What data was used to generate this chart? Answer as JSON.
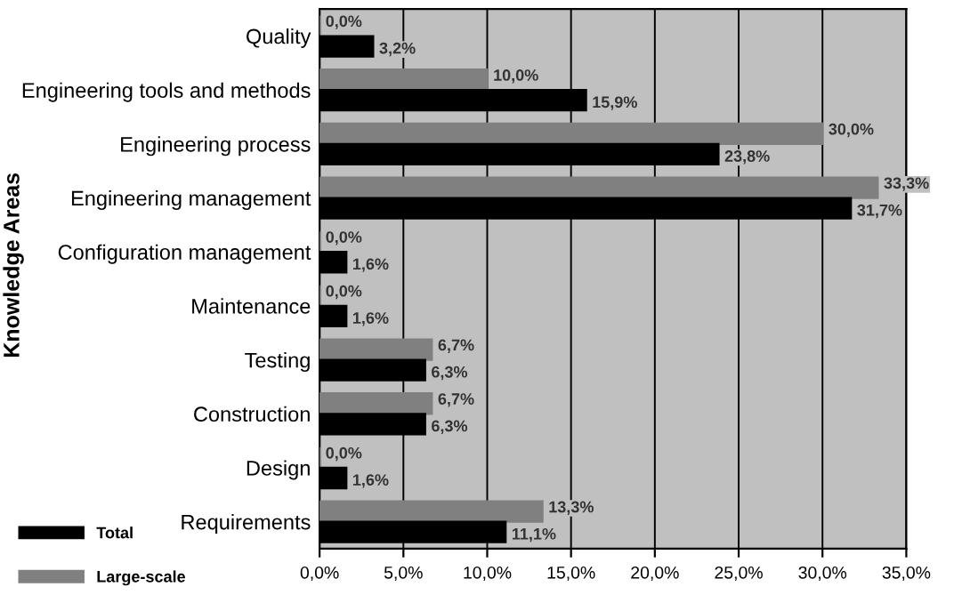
{
  "chart_data": {
    "type": "bar",
    "orientation": "horizontal",
    "ylabel": "Knowledge Areas",
    "categories": [
      "Quality",
      "Engineering tools and methods",
      "Engineering process",
      "Engineering management",
      "Configuration management",
      "Maintenance",
      "Testing",
      "Construction",
      "Design",
      "Requirements"
    ],
    "series": [
      {
        "name": "Large-scale",
        "color": "#808080",
        "values": [
          0.0,
          10.0,
          30.0,
          33.3,
          0.0,
          0.0,
          6.7,
          6.7,
          0.0,
          13.3
        ],
        "value_labels": [
          "0,0%",
          "10,0%",
          "30,0%",
          "33,3%",
          "0,0%",
          "0,0%",
          "6,7%",
          "6,7%",
          "0,0%",
          "13,3%"
        ]
      },
      {
        "name": "Total",
        "color": "#000000",
        "values": [
          3.2,
          15.9,
          23.8,
          31.7,
          1.6,
          1.6,
          6.3,
          6.3,
          1.6,
          11.1
        ],
        "value_labels": [
          "3,2%",
          "15,9%",
          "23,8%",
          "31,7%",
          "1,6%",
          "1,6%",
          "6,3%",
          "6,3%",
          "1,6%",
          "11,1%"
        ]
      }
    ],
    "xlim": [
      0,
      35
    ],
    "xticks": [
      {
        "value": 0,
        "label": "0,0%"
      },
      {
        "value": 5,
        "label": "5,0%"
      },
      {
        "value": 10,
        "label": "10,0%"
      },
      {
        "value": 15,
        "label": "15,0%"
      },
      {
        "value": 20,
        "label": "20,0%"
      },
      {
        "value": 25,
        "label": "25,0%"
      },
      {
        "value": 30,
        "label": "30,0%"
      },
      {
        "value": 35,
        "label": "35,0%"
      }
    ],
    "grid": "x",
    "legend": "bottom left"
  }
}
